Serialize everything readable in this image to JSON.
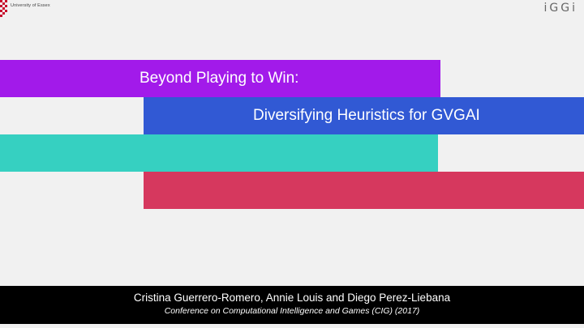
{
  "header": {
    "university_name": "University of Essex",
    "brand": "iGGi"
  },
  "title": {
    "line1": "Beyond Playing to Win:",
    "line2": "Diversifying Heuristics for GVGAI"
  },
  "footer": {
    "authors": "Cristina Guerrero-Romero, Annie Louis and Diego Perez-Liebana",
    "venue": "Conference on Computational Intelligence and Games (CIG) (2017)"
  },
  "colors": {
    "purple": "#a21aea",
    "blue": "#3159d4",
    "teal": "#36d0c1",
    "red": "#d6385e",
    "logo_red": "#c8102e"
  }
}
